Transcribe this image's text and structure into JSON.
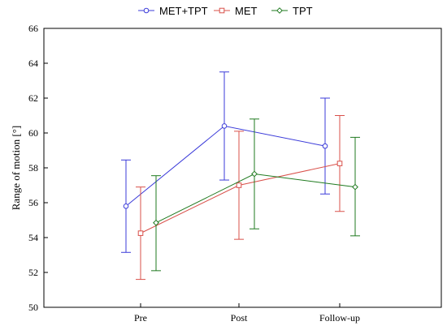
{
  "chart_data": {
    "type": "line",
    "title": "",
    "xlabel": "",
    "ylabel": "Range of motion [°]",
    "categories": [
      "Pre",
      "Post",
      "Follow-up"
    ],
    "ylim": [
      50,
      66
    ],
    "yticks": [
      50,
      52,
      54,
      56,
      58,
      60,
      62,
      64,
      66
    ],
    "grid": false,
    "legend_position": "top-center",
    "series": [
      {
        "name": "MET+TPT",
        "color": "#3b3bd9",
        "marker": "circle",
        "values": [
          55.8,
          60.4,
          59.25
        ],
        "err_low": [
          53.15,
          57.3,
          56.5
        ],
        "err_high": [
          58.45,
          63.5,
          62.0
        ]
      },
      {
        "name": "MET",
        "color": "#d9504a",
        "marker": "square",
        "values": [
          54.25,
          57.0,
          58.25
        ],
        "err_low": [
          51.6,
          53.9,
          55.5
        ],
        "err_high": [
          56.9,
          60.1,
          61.0
        ]
      },
      {
        "name": "TPT",
        "color": "#1f7a1f",
        "marker": "diamond",
        "values": [
          54.85,
          57.65,
          56.9
        ],
        "err_low": [
          52.1,
          54.5,
          54.1
        ],
        "err_high": [
          57.55,
          60.8,
          59.75
        ]
      }
    ]
  }
}
